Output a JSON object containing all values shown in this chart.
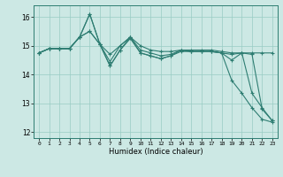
{
  "xlabel": "Humidex (Indice chaleur)",
  "background_color": "#cce8e4",
  "grid_color": "#99ccc4",
  "line_color": "#2e7d72",
  "xlim": [
    -0.5,
    23.5
  ],
  "ylim": [
    11.8,
    16.4
  ],
  "yticks": [
    12,
    13,
    14,
    15,
    16
  ],
  "xticks": [
    0,
    1,
    2,
    3,
    4,
    5,
    6,
    7,
    8,
    9,
    10,
    11,
    12,
    13,
    14,
    15,
    16,
    17,
    18,
    19,
    20,
    21,
    22,
    23
  ],
  "line1_x": [
    0,
    1,
    2,
    3,
    4,
    5,
    6,
    7,
    8,
    9,
    10,
    11,
    12,
    13,
    14,
    15,
    16,
    17,
    18,
    19,
    20,
    21,
    22,
    23
  ],
  "line1_y": [
    14.75,
    14.9,
    14.9,
    14.9,
    15.3,
    16.1,
    15.05,
    14.3,
    14.85,
    15.25,
    14.75,
    14.65,
    14.55,
    14.65,
    14.8,
    14.8,
    14.8,
    14.8,
    14.75,
    14.5,
    14.75,
    14.7,
    12.8,
    12.4
  ],
  "line2_x": [
    0,
    1,
    2,
    3,
    4,
    5,
    6,
    7,
    8,
    9,
    10,
    11,
    12,
    13,
    14,
    15,
    16,
    17,
    18,
    19,
    20,
    21,
    22,
    23
  ],
  "line2_y": [
    14.75,
    14.9,
    14.9,
    14.9,
    15.3,
    15.5,
    15.05,
    14.45,
    15.0,
    15.3,
    14.85,
    14.75,
    14.65,
    14.7,
    14.85,
    14.8,
    14.8,
    14.8,
    14.75,
    14.7,
    14.75,
    13.35,
    12.85,
    12.4
  ],
  "line3_x": [
    0,
    1,
    2,
    3,
    4,
    5,
    6,
    7,
    8,
    9,
    10,
    11,
    12,
    13,
    14,
    15,
    16,
    17,
    18,
    19,
    20,
    21,
    22,
    23
  ],
  "line3_y": [
    14.75,
    14.9,
    14.9,
    14.9,
    15.3,
    15.5,
    15.05,
    14.7,
    15.0,
    15.3,
    15.0,
    14.85,
    14.8,
    14.8,
    14.85,
    14.85,
    14.85,
    14.85,
    14.8,
    14.75,
    14.75,
    14.75,
    14.75,
    14.75
  ],
  "line4_x": [
    0,
    1,
    2,
    3,
    4,
    5,
    6,
    7,
    8,
    9,
    10,
    11,
    12,
    13,
    14,
    15,
    16,
    17,
    18,
    19,
    20,
    21,
    22,
    23
  ],
  "line4_y": [
    14.75,
    14.9,
    14.9,
    14.9,
    15.3,
    16.1,
    15.05,
    14.3,
    14.85,
    15.3,
    14.75,
    14.65,
    14.55,
    14.65,
    14.85,
    14.8,
    14.8,
    14.8,
    14.75,
    13.8,
    13.35,
    12.85,
    12.45,
    12.35
  ]
}
